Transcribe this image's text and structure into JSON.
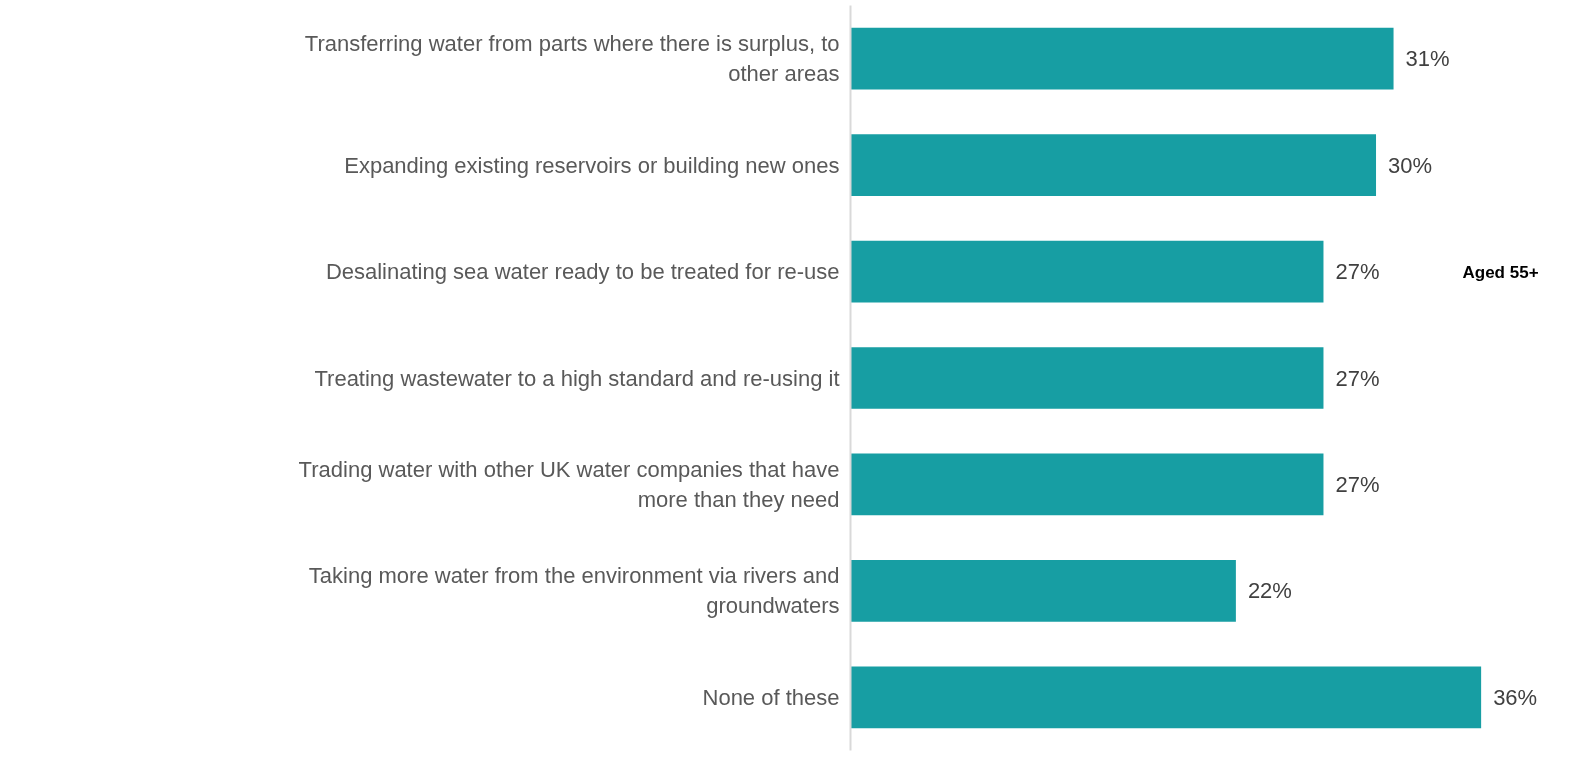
{
  "chart_data": {
    "type": "bar",
    "orientation": "horizontal",
    "categories": [
      "Transferring water from parts where there is surplus, to other areas",
      "Expanding existing reservoirs or building new ones",
      "Desalinating sea water ready to be treated for re-use",
      "Treating wastewater to a high standard and re-using it",
      "Trading water with other UK water companies that have more than they need",
      "Taking more water from the environment via rivers and groundwaters",
      "None of these"
    ],
    "values": [
      31,
      30,
      27,
      27,
      27,
      22,
      36
    ],
    "value_labels": [
      "31%",
      "30%",
      "27%",
      "27%",
      "27%",
      "22%",
      "36%"
    ],
    "color": "#179ea3",
    "grid": false,
    "annotations": [
      "Aged 55+"
    ]
  }
}
